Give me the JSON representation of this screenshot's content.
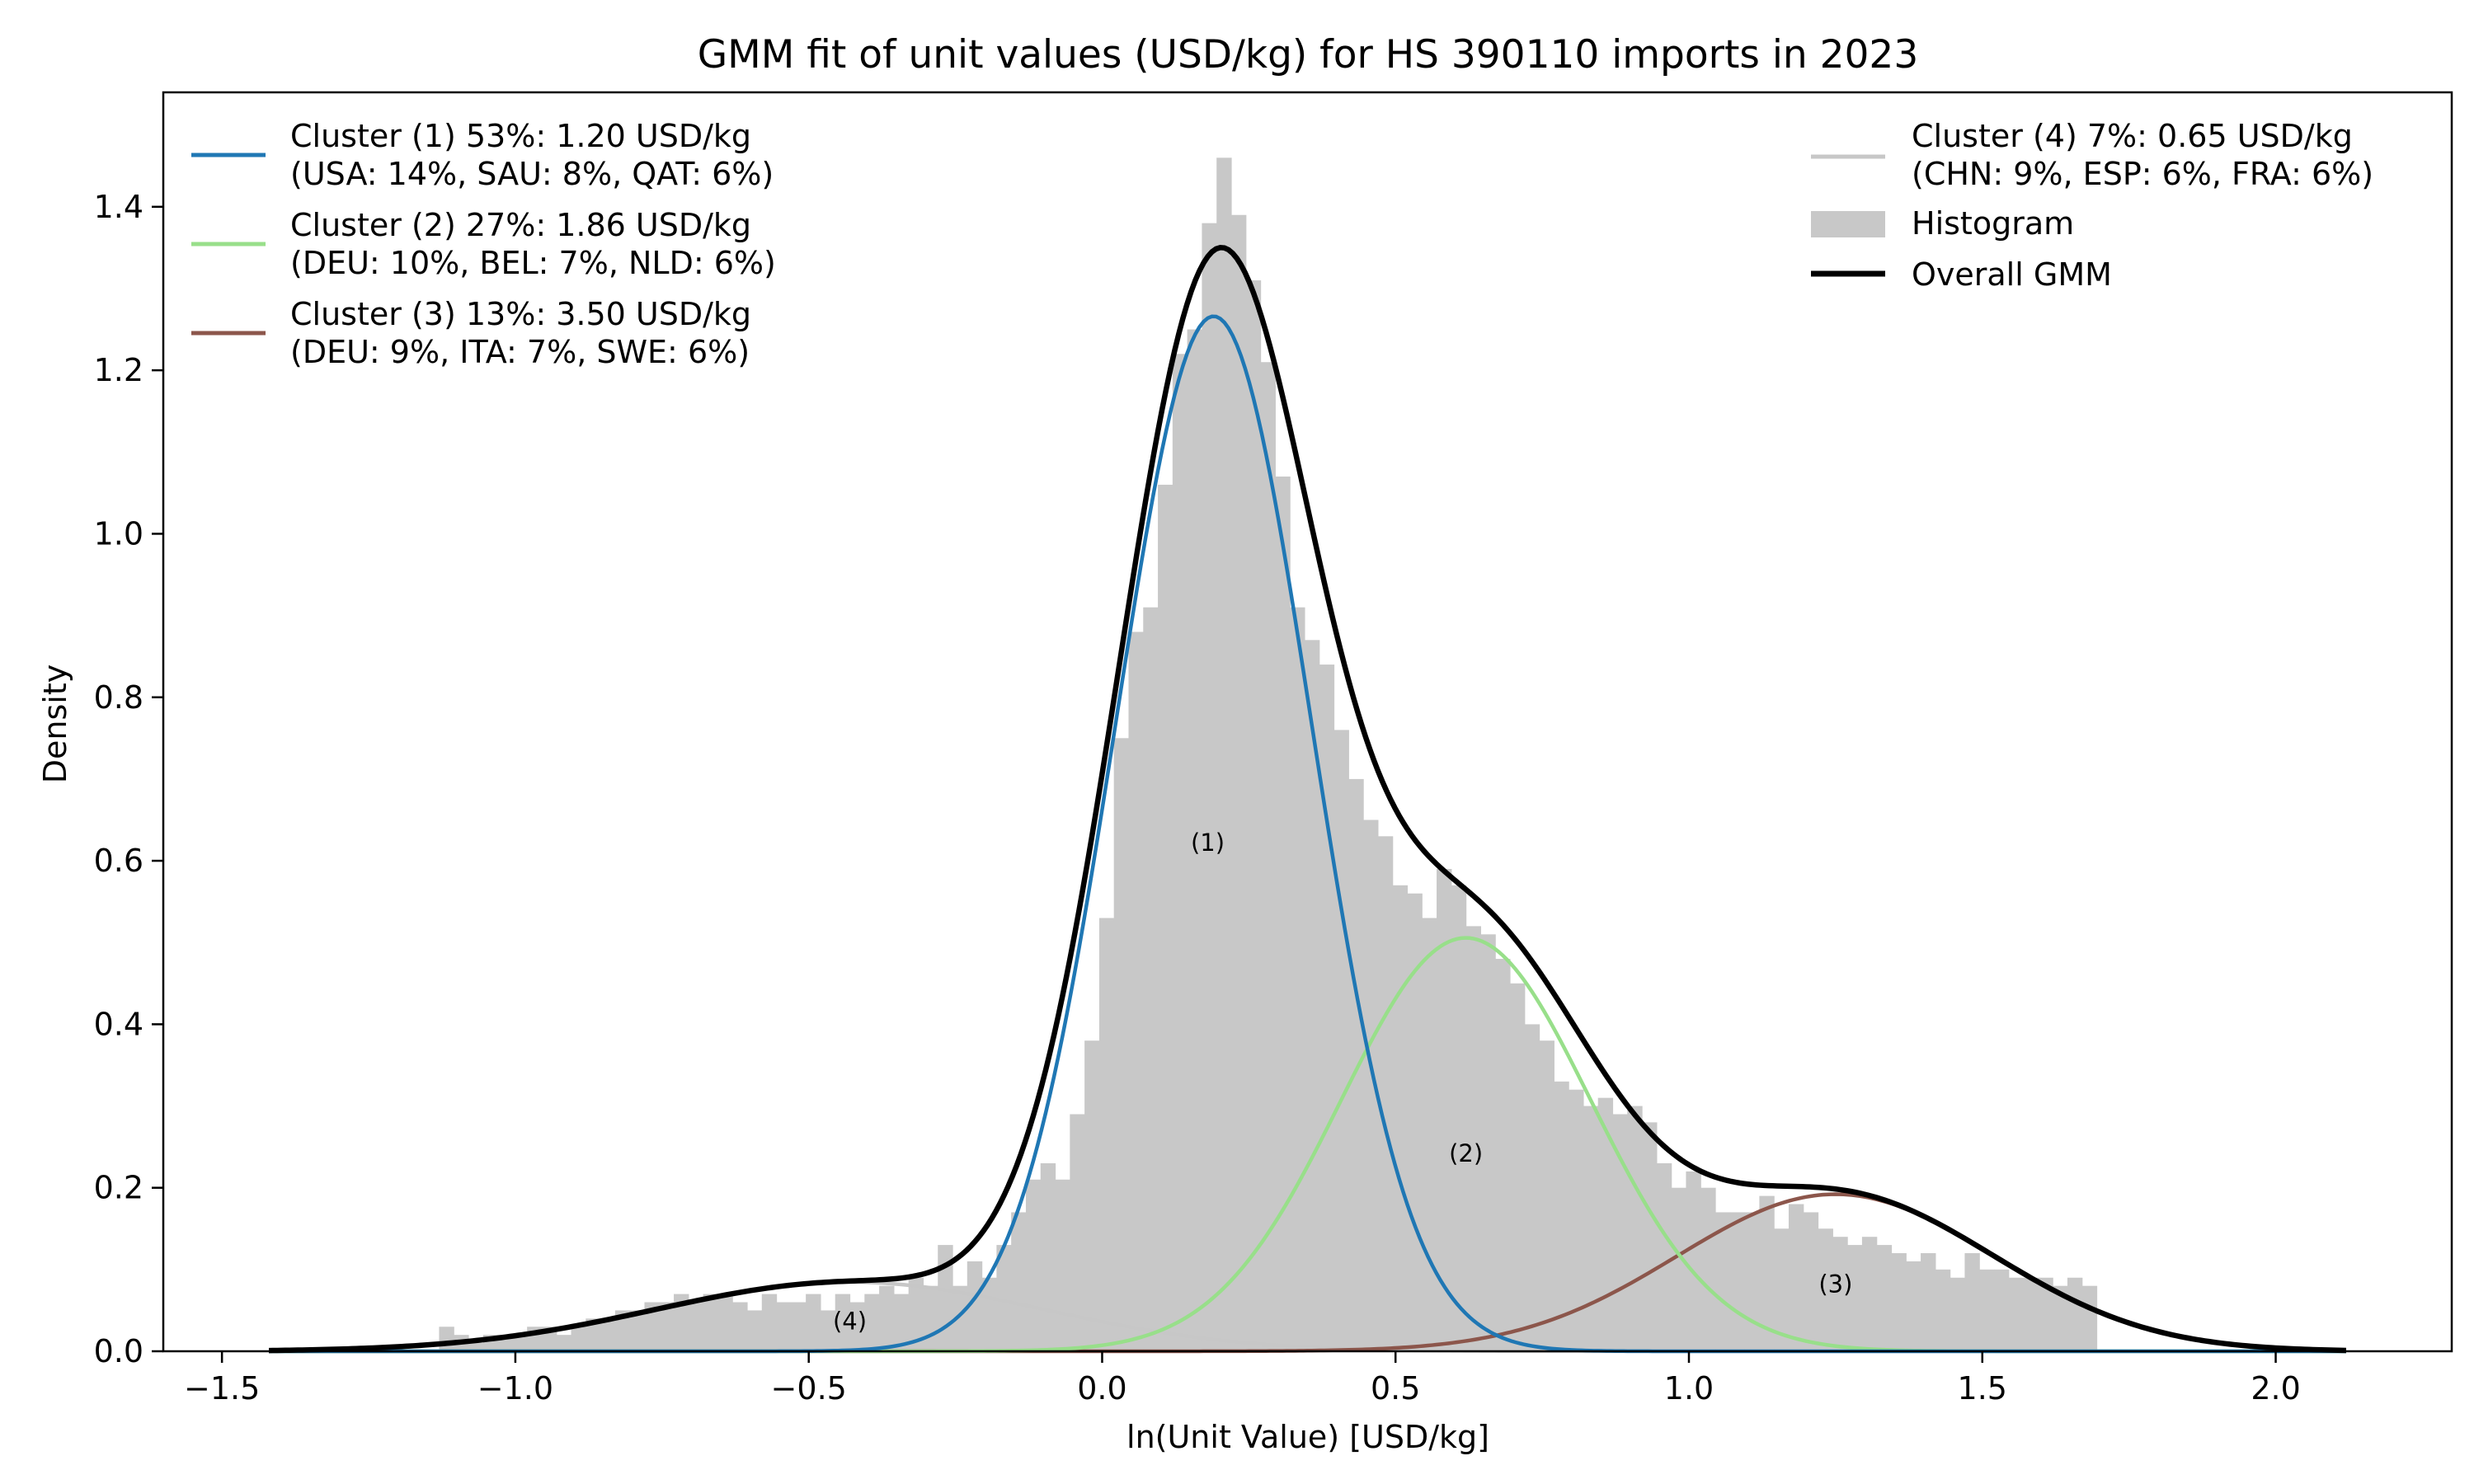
{
  "chart_data": {
    "type": "histogram+line",
    "title": "GMM fit of unit values (USD/kg) for HS 390110 imports in 2023",
    "xlabel": "ln(Unit Value) [USD/kg]",
    "ylabel": "Density",
    "xlim": [
      -1.6,
      2.3
    ],
    "ylim": [
      0.0,
      1.54
    ],
    "xticks": [
      -1.5,
      -1.0,
      -0.5,
      0.0,
      0.5,
      1.0,
      1.5,
      2.0
    ],
    "xtick_labels": [
      "−1.5",
      "−1.0",
      "−0.5",
      "0.0",
      "0.5",
      "1.0",
      "1.5",
      "2.0"
    ],
    "yticks": [
      0.0,
      0.2,
      0.4,
      0.6,
      0.8,
      1.0,
      1.2,
      1.4
    ],
    "ytick_labels": [
      "0.0",
      "0.2",
      "0.4",
      "0.6",
      "0.8",
      "1.0",
      "1.2",
      "1.4"
    ],
    "histogram": {
      "name": "Histogram",
      "color": "#c8c8c8",
      "bin_start": -1.13,
      "bin_width": 0.025,
      "density": [
        0.03,
        0.02,
        0.01,
        0.02,
        0.02,
        0.02,
        0.03,
        0.03,
        0.02,
        0.03,
        0.04,
        0.04,
        0.05,
        0.05,
        0.06,
        0.06,
        0.07,
        0.06,
        0.07,
        0.07,
        0.06,
        0.05,
        0.07,
        0.06,
        0.06,
        0.07,
        0.05,
        0.07,
        0.06,
        0.07,
        0.08,
        0.07,
        0.09,
        0.08,
        0.13,
        0.08,
        0.11,
        0.09,
        0.13,
        0.17,
        0.21,
        0.23,
        0.21,
        0.29,
        0.38,
        0.53,
        0.75,
        0.88,
        0.91,
        1.06,
        1.22,
        1.25,
        1.38,
        1.46,
        1.39,
        1.31,
        1.21,
        1.07,
        0.91,
        0.87,
        0.84,
        0.76,
        0.7,
        0.65,
        0.63,
        0.57,
        0.56,
        0.53,
        0.59,
        0.57,
        0.52,
        0.51,
        0.48,
        0.45,
        0.4,
        0.38,
        0.33,
        0.32,
        0.3,
        0.31,
        0.29,
        0.3,
        0.28,
        0.23,
        0.2,
        0.22,
        0.2,
        0.17,
        0.17,
        0.17,
        0.19,
        0.15,
        0.18,
        0.17,
        0.15,
        0.14,
        0.13,
        0.14,
        0.13,
        0.12,
        0.11,
        0.12,
        0.1,
        0.09,
        0.12,
        0.1,
        0.1,
        0.09,
        0.09,
        0.09,
        0.08,
        0.09,
        0.08
      ]
    },
    "x_range": [
      -1.42,
      2.12
    ],
    "components": [
      {
        "id": "1",
        "name": "Cluster (1) 53%: 1.20 USD/kg",
        "detail": "(USA: 14%, SAU: 8%, QAT: 6%)",
        "weight": 0.53,
        "mean": 0.19,
        "sd": 0.167,
        "color": "#1f77b4",
        "region_label": "(1)",
        "label_at": [
          0.18,
          0.62
        ]
      },
      {
        "id": "2",
        "name": "Cluster (2) 27%: 1.86 USD/kg",
        "detail": "(DEU: 10%, BEL: 7%, NLD: 6%)",
        "weight": 0.27,
        "mean": 0.62,
        "sd": 0.213,
        "color": "#98df8a",
        "region_label": "(2)",
        "label_at": [
          0.62,
          0.24
        ]
      },
      {
        "id": "3",
        "name": "Cluster (3) 13%: 3.50 USD/kg",
        "detail": "(DEU: 9%, ITA: 7%, SWE: 6%)",
        "weight": 0.13,
        "mean": 1.25,
        "sd": 0.27,
        "color": "#8c564b",
        "region_label": "(3)",
        "label_at": [
          1.25,
          0.08
        ]
      },
      {
        "id": "4",
        "name": "Cluster (4) 7%: 0.65 USD/kg",
        "detail": "(CHN: 9%, ESP: 6%, FRA: 6%)",
        "weight": 0.07,
        "mean": -0.43,
        "sd": 0.33,
        "color": "#c7c7c7",
        "region_label": "(4)",
        "label_at": [
          -0.43,
          0.035
        ]
      }
    ],
    "overall": {
      "name": "Overall GMM",
      "color": "#000000"
    }
  },
  "legend_left": {
    "entries": [
      {
        "line1": "Cluster (1) 53%: 1.20 USD/kg",
        "line2": "(USA: 14%, SAU: 8%, QAT: 6%)",
        "color": "#1f77b4"
      },
      {
        "line1": "Cluster (2) 27%: 1.86 USD/kg",
        "line2": "(DEU: 10%, BEL: 7%, NLD: 6%)",
        "color": "#98df8a"
      },
      {
        "line1": "Cluster (3) 13%: 3.50 USD/kg",
        "line2": "(DEU: 9%, ITA: 7%, SWE: 6%)",
        "color": "#8c564b"
      }
    ]
  },
  "legend_right": {
    "cluster4": {
      "line1": "Cluster (4) 7%: 0.65 USD/kg",
      "line2": "(CHN: 9%, ESP: 6%, FRA: 6%)",
      "color": "#c7c7c7"
    },
    "histogram": {
      "label": "Histogram",
      "color": "#c8c8c8"
    },
    "overall": {
      "label": "Overall GMM",
      "color": "#000000"
    }
  }
}
